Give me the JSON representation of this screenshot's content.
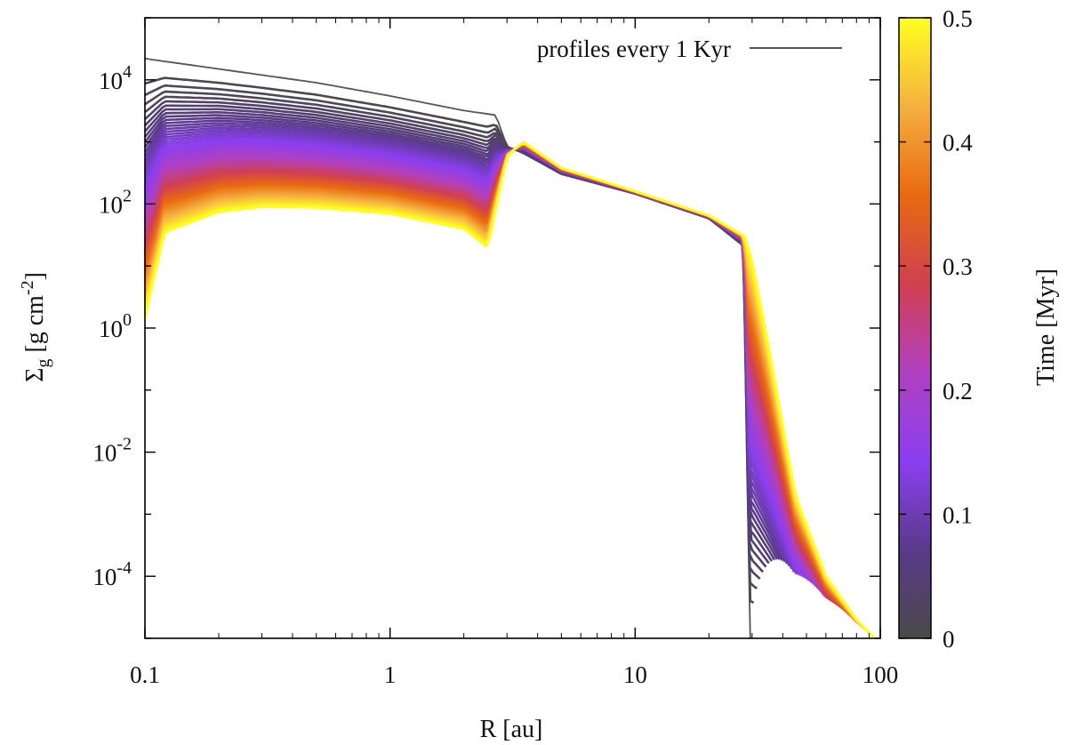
{
  "chart_data": {
    "type": "line",
    "title": "",
    "xlabel": "R [au]",
    "ylabel_main": "Σ",
    "ylabel_sub": "g",
    "ylabel_unit": "[g cm",
    "ylabel_unit_exp": "-2",
    "ylabel_close": "]",
    "xscale": "log",
    "yscale": "log",
    "xlim": [
      0.1,
      100
    ],
    "ylim": [
      1e-05,
      100000.0
    ],
    "x_ticks": [
      {
        "value": 0.1,
        "label": "0.1"
      },
      {
        "value": 1,
        "label": "1"
      },
      {
        "value": 10,
        "label": "10"
      },
      {
        "value": 100,
        "label": "100"
      }
    ],
    "y_ticks": [
      {
        "value": 10000.0,
        "base": "10",
        "exp": "4"
      },
      {
        "value": 100.0,
        "base": "10",
        "exp": "2"
      },
      {
        "value": 1.0,
        "base": "10",
        "exp": "0"
      },
      {
        "value": 0.01,
        "base": "10",
        "exp": "-2"
      },
      {
        "value": 0.0001,
        "base": "10",
        "exp": "-4"
      }
    ],
    "legend": {
      "label": "profiles every 1 Kyr",
      "position": "top-right",
      "color": "#555555"
    },
    "colorbar": {
      "label": "Time [Myr]",
      "range": [
        0,
        0.5
      ],
      "ticks": [
        "0",
        "0.1",
        "0.2",
        "0.3",
        "0.4",
        "0.5"
      ],
      "tick_values": [
        0,
        0.1,
        0.2,
        0.3,
        0.4,
        0.5
      ],
      "colors": [
        "#4a4a4a",
        "#5a3a8a",
        "#8a3ff0",
        "#b040c0",
        "#d04050",
        "#e86a10",
        "#f5b040",
        "#ffff20"
      ]
    },
    "n_profiles": 500,
    "time_range_myr": [
      0,
      0.5
    ],
    "profile_samples": [
      {
        "time_myr": 0,
        "x": [
          0.1,
          0.5,
          1.0,
          2.0,
          2.7,
          3.0,
          3.5,
          5.0,
          10,
          20,
          28,
          29,
          29.5
        ],
        "y": [
          22000,
          9000,
          5500,
          3200,
          2700,
          850,
          650,
          300,
          145,
          58,
          20,
          1.5e-05,
          1e-05
        ]
      },
      {
        "time_myr": 0.5,
        "x": [
          0.1,
          0.12,
          0.2,
          0.3,
          0.5,
          1.0,
          2.0,
          2.5,
          3.0,
          3.5,
          5.0,
          10,
          20,
          28,
          30,
          35,
          45,
          60,
          80,
          95
        ],
        "y": [
          1.5,
          35,
          75,
          90,
          88,
          70,
          40,
          20,
          600,
          1000,
          380,
          160,
          65,
          30,
          12,
          0.5,
          0.002,
          0.0001,
          2e-05,
          1e-05
        ]
      }
    ]
  }
}
